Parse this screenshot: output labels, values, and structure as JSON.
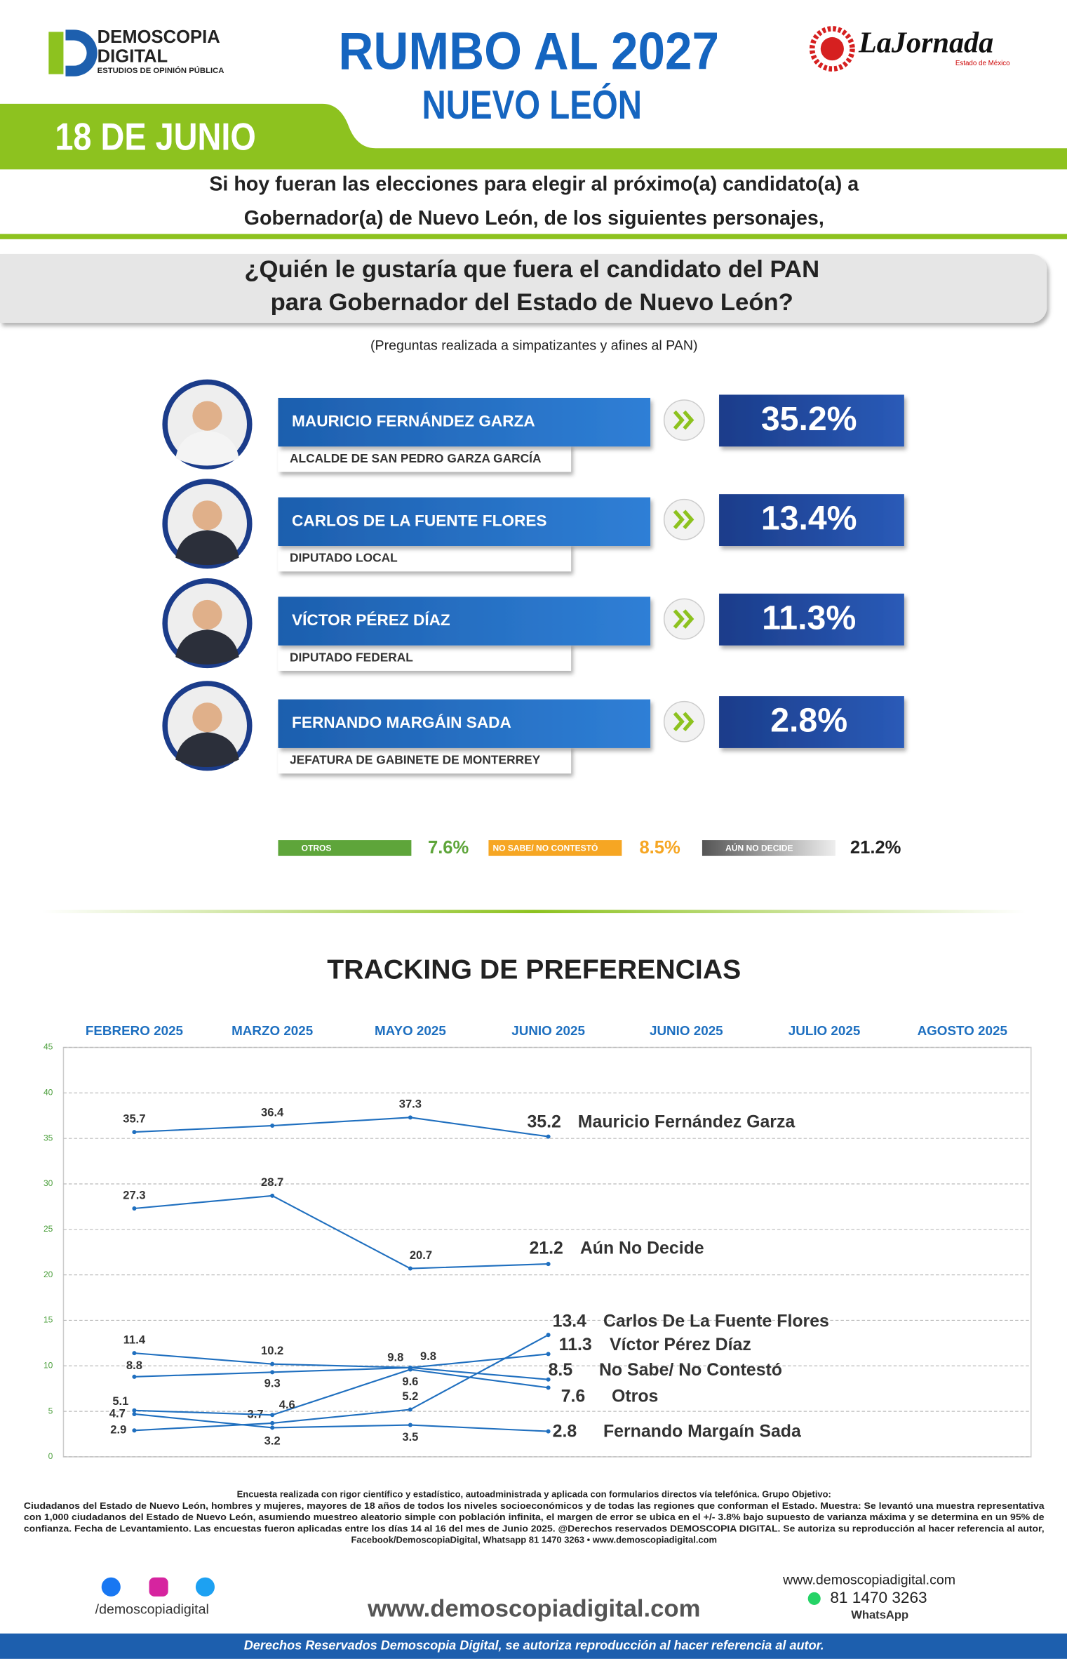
{
  "header": {
    "brand": "DEMOSCOPIA",
    "brand2": "DIGITAL",
    "tagline": "ESTUDIOS DE OPINIÓN PÚBLICA",
    "title": "RUMBO AL 2027",
    "subtitle": "NUEVO LEÓN",
    "partner": "LaJornada",
    "partner_sub": "Estado de México",
    "date": "18 DE JUNIO"
  },
  "intro": [
    "Si hoy fueran las elecciones para elegir al próximo(a) candidato(a) a",
    "Gobernador(a) de Nuevo León, de los siguientes personajes,"
  ],
  "question": [
    "¿Quién le gustaría que fuera el candidato del PAN",
    "para Gobernador del Estado de Nuevo León?"
  ],
  "note": "(Preguntas realizada a simpatizantes y afines al PAN)",
  "candidates": [
    {
      "name": "MAURICIO FERNÁNDEZ GARZA",
      "role": "ALCALDE DE SAN PEDRO GARZA GARCÍA",
      "percent": "35.2%"
    },
    {
      "name": "CARLOS DE LA FUENTE FLORES",
      "role": "DIPUTADO LOCAL",
      "percent": "13.4%"
    },
    {
      "name": "VÍCTOR PÉREZ DÍAZ",
      "role": "DIPUTADO FEDERAL",
      "percent": "11.3%"
    },
    {
      "name": "FERNANDO MARGÁIN SADA",
      "role": "JEFATURA DE GABINETE DE MONTERREY",
      "percent": "2.8%"
    }
  ],
  "others": [
    {
      "label": "OTROS",
      "percent": "7.6%"
    },
    {
      "label": "NO SABE/ NO CONTESTÓ",
      "percent": "8.5%"
    },
    {
      "label": "AÚN NO DECIDE",
      "percent": "21.2%"
    }
  ],
  "chart_data": {
    "type": "line",
    "title": "TRACKING DE PREFERENCIAS",
    "categories": [
      "FEBRERO 2025",
      "MARZO 2025",
      "MAYO 2025",
      "JUNIO 2025",
      "JUNIO 2025",
      "JULIO 2025",
      "AGOSTO 2025"
    ],
    "ylim": [
      0,
      45
    ],
    "yticks": [
      0,
      5,
      10,
      15,
      20,
      25,
      30,
      35,
      40,
      45
    ],
    "grid": true,
    "series": [
      {
        "name": "Mauricio Fernández Garza",
        "color": "#1f6fbf",
        "values": [
          35.7,
          36.4,
          37.3,
          35.2,
          null,
          null,
          null
        ]
      },
      {
        "name": "Aún No Decide",
        "color": "#1f6fbf",
        "values": [
          27.3,
          28.7,
          20.7,
          21.2,
          null,
          null,
          null
        ]
      },
      {
        "name": "Carlos De La Fuente Flores",
        "color": "#1f6fbf",
        "values": [
          2.9,
          3.7,
          5.2,
          13.4,
          null,
          null,
          null
        ]
      },
      {
        "name": "Víctor Pérez Díaz",
        "color": "#1f6fbf",
        "values": [
          8.8,
          9.3,
          9.8,
          11.3,
          null,
          null,
          null
        ]
      },
      {
        "name": "No Sabe/ No Contestó",
        "color": "#1f6fbf",
        "values": [
          11.4,
          10.2,
          9.8,
          8.5,
          null,
          null,
          null
        ]
      },
      {
        "name": "Otros",
        "color": "#1f6fbf",
        "values": [
          5.1,
          4.6,
          9.6,
          7.6,
          null,
          null,
          null
        ]
      },
      {
        "name": "Fernando Margaín Sada",
        "color": "#1f6fbf",
        "values": [
          4.7,
          3.2,
          3.5,
          2.8,
          null,
          null,
          null
        ]
      }
    ]
  },
  "footnote": [
    "Encuesta realizada con rigor científico y estadístico, autoadministrada y aplicada con formularios directos vía telefónica. Grupo Objetivo:",
    "Ciudadanos del Estado de Nuevo León, hombres y mujeres, mayores de 18 años de todos los niveles socioeconómicos y de todas las regiones que conforman el Estado. Muestra: Se levantó una muestra representativa",
    "con 1,000 ciudadanos del Estado de Nuevo León, asumiendo muestreo aleatorio simple con población infinita, el margen de error se ubica en el +/- 3.8% bajo supuesto de varianza máxima y se determina en un 95% de",
    "confianza. Fecha de Levantamiento. Las encuestas fueron aplicadas entre los días 14 al 16 del mes de Junio 2025. @Derechos reservados DEMOSCOPIA DIGITAL. Se autoriza su reproducción al hacer referencia al autor,",
    "Facebook/DemoscopiaDigital, Whatsapp 81 1470 3263 • www.demoscopiadigital.com"
  ],
  "footer": {
    "social": "/demoscopiadigital",
    "website": "www.demoscopiadigital.com",
    "website_small": "www.demoscopiadigital.com",
    "phone": "81 1470 3263",
    "whatsapp": "WhatsApp",
    "rights": "Derechos Reservados Demoscopia Digital, se autoriza reproducción al hacer referencia al autor."
  }
}
